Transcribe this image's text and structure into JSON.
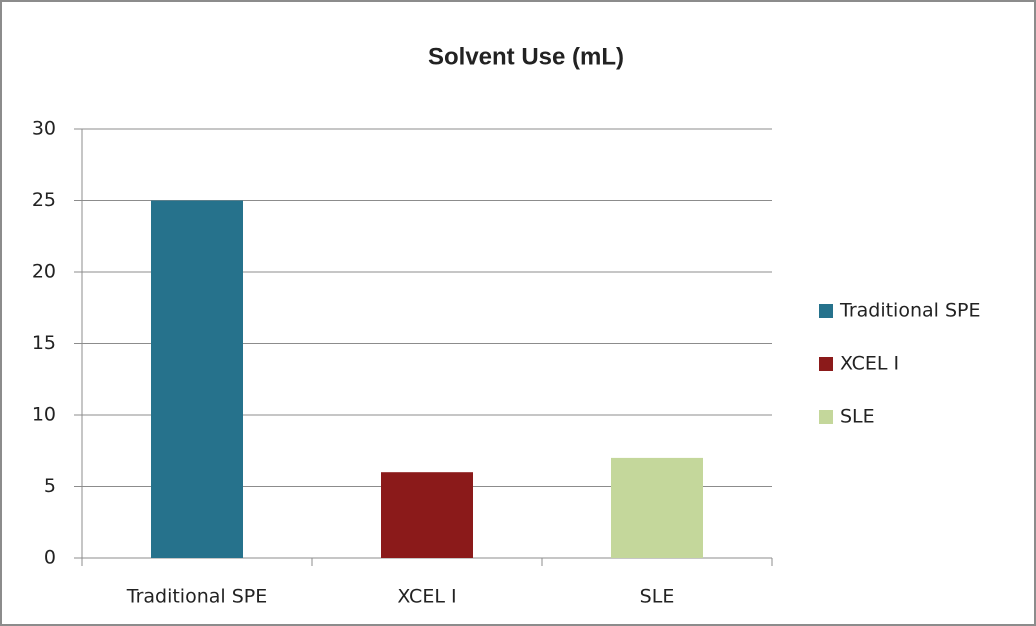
{
  "chart_data": {
    "type": "bar",
    "title": "Solvent Use (mL)",
    "categories": [
      "Traditional SPE",
      "XCEL I",
      "SLE"
    ],
    "values": [
      25,
      6,
      7
    ],
    "colors": [
      "#26728c",
      "#8b1a1a",
      "#c4d79b"
    ],
    "ylim": [
      0,
      30
    ],
    "yticks": [
      0,
      5,
      10,
      15,
      20,
      25,
      30
    ],
    "grid": true,
    "legend": "right"
  }
}
